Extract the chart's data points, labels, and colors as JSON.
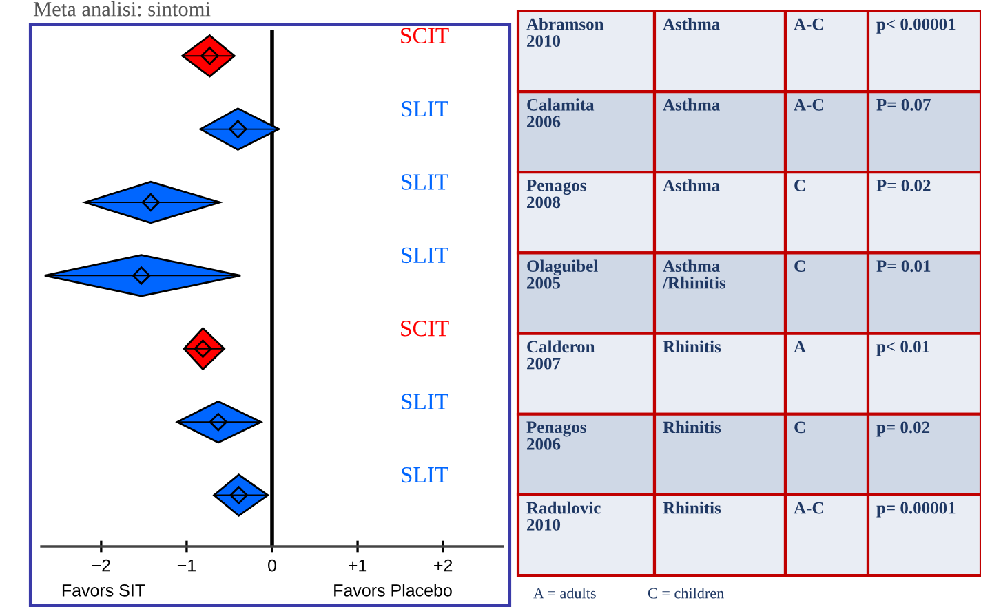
{
  "chart_data": [
    {
      "type": "scatter",
      "title": "Meta analisi: sintomi",
      "orientation": "horizontal",
      "marker": "diamond",
      "categories": [
        "SCIT",
        "SLIT",
        "SLIT",
        "SLIT",
        "SCIT",
        "SLIT",
        "SLIT"
      ],
      "values": [
        -0.73,
        -0.4,
        -1.42,
        -1.53,
        -0.81,
        -0.63,
        -0.39
      ],
      "errors": [
        [
          -1.05,
          -0.44
        ],
        [
          -0.84,
          0.08
        ],
        [
          -2.19,
          -0.61
        ],
        [
          -2.66,
          -0.37
        ],
        [
          -1.03,
          -0.56
        ],
        [
          -1.11,
          -0.13
        ],
        [
          -0.68,
          -0.05
        ]
      ],
      "colors": [
        "#ff0000",
        "#0066ff",
        "#0066ff",
        "#0066ff",
        "#ff0000",
        "#0066ff",
        "#0066ff"
      ],
      "xlim": [
        -2.7,
        2.7
      ],
      "xticks": [
        {
          "value": -2,
          "label": "−2"
        },
        {
          "value": -1,
          "label": "−1"
        },
        0,
        {
          "value": 1,
          "label": "+1"
        },
        {
          "value": 2,
          "label": "+2"
        }
      ],
      "ref_lines": [
        {
          "axis": "x",
          "value": 0,
          "color": "#000000"
        }
      ],
      "annotations": [
        "Favors SIT",
        "Favors Placebo"
      ]
    },
    {
      "type": "other",
      "annotations": [
        "Abramson\n2010",
        "Asthma",
        "A-C",
        "p< 0.00001",
        "Calamita\n2006",
        "Asthma",
        "A-C",
        "P= 0.07",
        "Penagos\n2008",
        "Asthma",
        "C",
        "P= 0.02",
        "Olaguibel\n2005",
        "Asthma\n/Rhinitis",
        "C",
        "P= 0.01",
        "Calderon\n2007",
        "Rhinitis",
        "A",
        "p< 0.01",
        "Penagos\n2006",
        "Rhinitis",
        "C",
        "p= 0.02",
        "Radulovic\n2010",
        "Rhinitis",
        "A-C",
        "p= 0.00001",
        "A = adults",
        "C = children"
      ]
    }
  ]
}
